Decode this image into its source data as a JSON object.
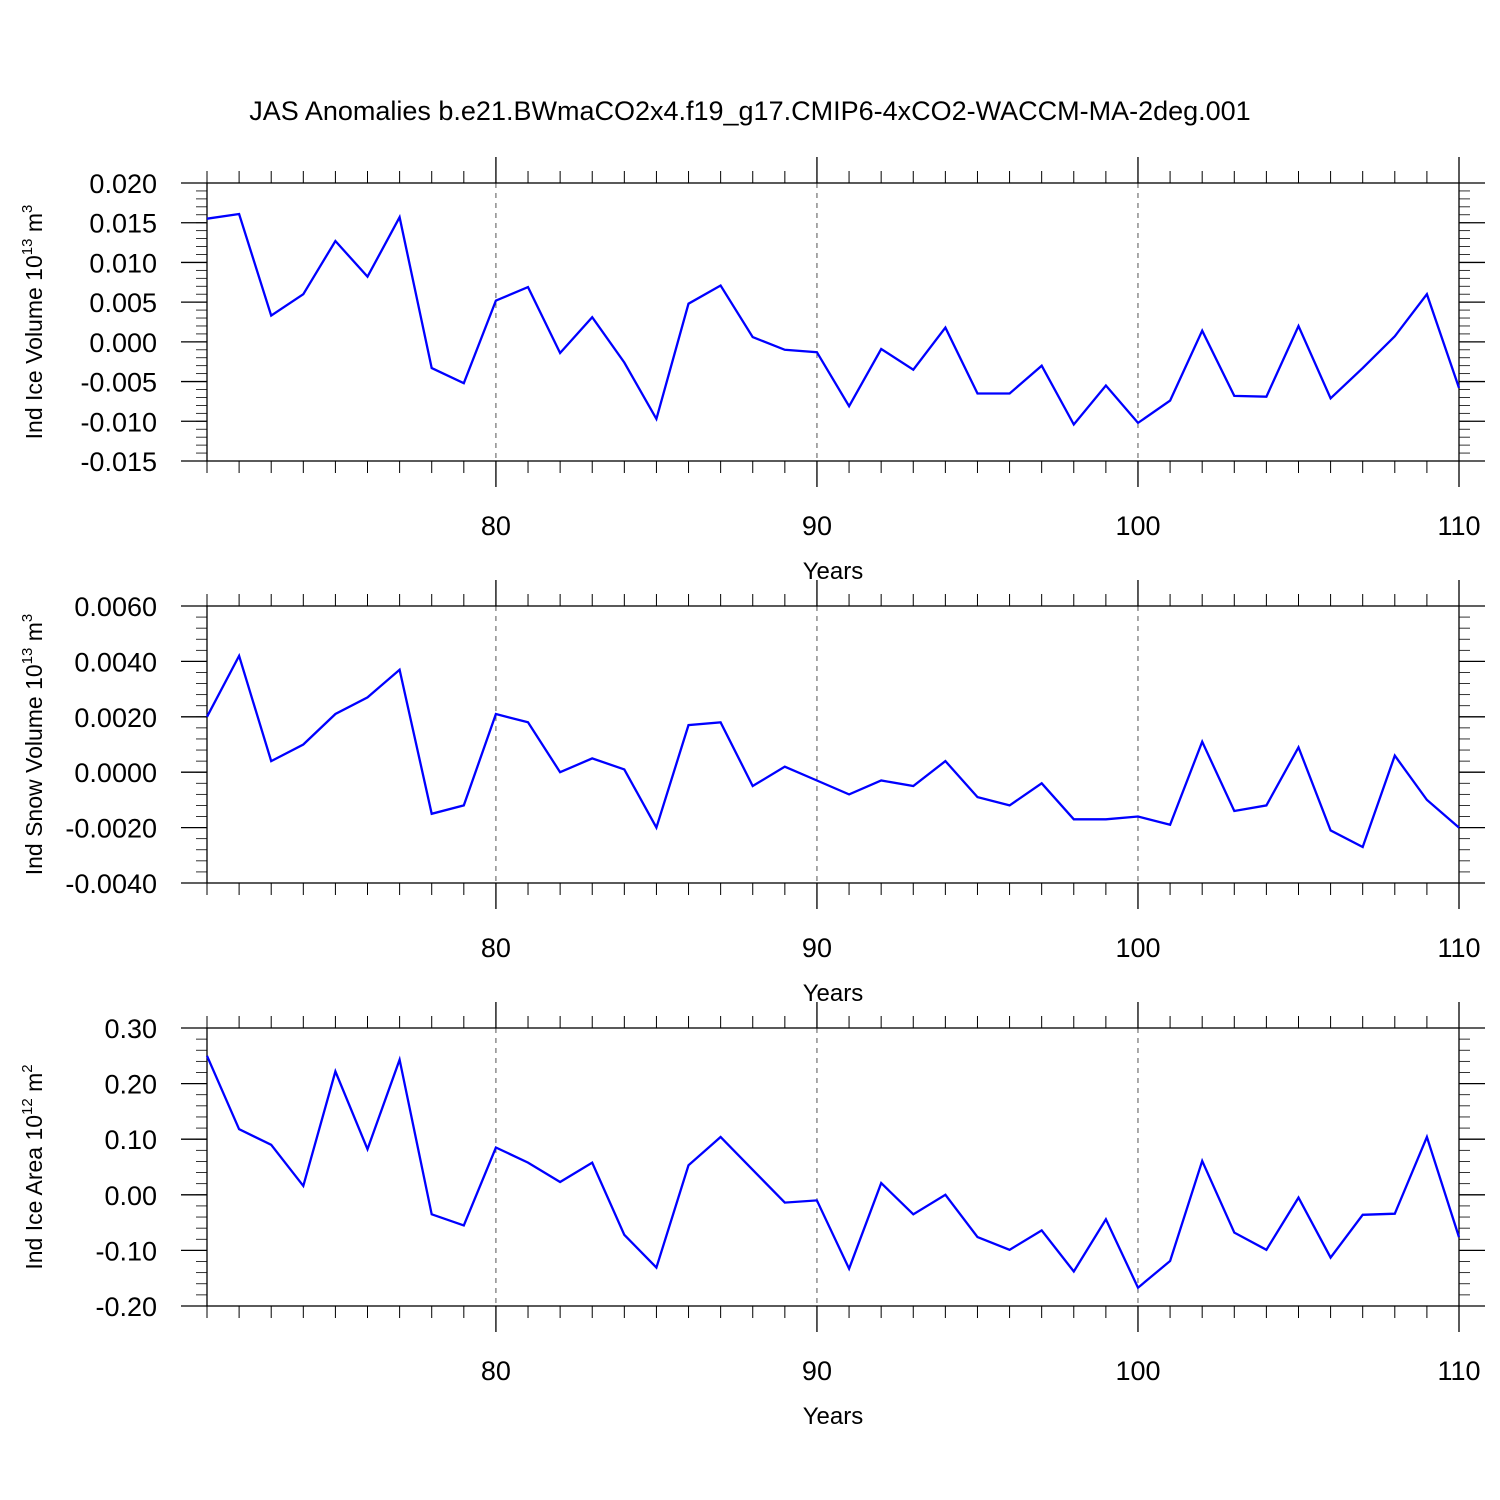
{
  "title": "JAS Anomalies b.e21.BWmaCO2x4.f19_g17.CMIP6-4xCO2-WACCM-MA-2deg.001",
  "colors": {
    "series": "#0000ff",
    "axis": "#000000",
    "grid": "#555555"
  },
  "chart_data": [
    {
      "type": "line",
      "ylabel": {
        "text": "Ind Ice Volume 10",
        "sup1": "13",
        "mid": " m",
        "sup2": "3"
      },
      "xlabel": "Years",
      "xlim": [
        71,
        110
      ],
      "ylim": [
        -0.015,
        0.02
      ],
      "x_ticks": [
        80,
        90,
        100,
        110
      ],
      "x_tick_labels": [
        "80",
        "90",
        "100",
        "110"
      ],
      "x_grid": "dashed at major ticks",
      "y_ticks": [
        -0.015,
        -0.01,
        -0.005,
        0.0,
        0.005,
        0.01,
        0.015,
        0.02
      ],
      "y_tick_labels": [
        "-0.015",
        "-0.010",
        "-0.005",
        "0.000",
        "0.005",
        "0.010",
        "0.015",
        "0.020"
      ],
      "y_minor_step": 0.001,
      "x": [
        71,
        72,
        73,
        74,
        75,
        76,
        77,
        78,
        79,
        80,
        81,
        82,
        83,
        84,
        85,
        86,
        87,
        88,
        89,
        90,
        91,
        92,
        93,
        94,
        95,
        96,
        97,
        98,
        99,
        100,
        101,
        102,
        103,
        104,
        105,
        106,
        107,
        108,
        109,
        110
      ],
      "series": [
        {
          "values": [
            0.0155,
            0.0161,
            0.0033,
            0.006,
            0.0127,
            0.0082,
            0.0157,
            -0.0033,
            -0.0052,
            0.0052,
            0.0069,
            -0.0014,
            0.0031,
            -0.0026,
            -0.0097,
            0.0048,
            0.0071,
            0.0006,
            -0.001,
            -0.0013,
            -0.0081,
            -0.0009,
            -0.0035,
            0.0018,
            -0.0065,
            -0.0065,
            -0.003,
            -0.0104,
            -0.0055,
            -0.0102,
            -0.0074,
            0.0014,
            -0.0068,
            -0.0069,
            0.002,
            -0.0071,
            -0.0033,
            0.0007,
            0.006,
            -0.0058
          ]
        }
      ]
    },
    {
      "type": "line",
      "ylabel": {
        "text": "Ind Snow Volume 10",
        "sup1": "13",
        "mid": " m",
        "sup2": "3"
      },
      "xlabel": "Years",
      "xlim": [
        71,
        110
      ],
      "ylim": [
        -0.004,
        0.006
      ],
      "x_ticks": [
        80,
        90,
        100,
        110
      ],
      "x_tick_labels": [
        "80",
        "90",
        "100",
        "110"
      ],
      "x_grid": "dashed at major ticks",
      "y_ticks": [
        -0.004,
        -0.002,
        0.0,
        0.002,
        0.004,
        0.006
      ],
      "y_tick_labels": [
        "-0.0040",
        "-0.0020",
        "0.0000",
        "0.0020",
        "0.0040",
        "0.0060"
      ],
      "y_minor_step": 0.0004,
      "x": [
        71,
        72,
        73,
        74,
        75,
        76,
        77,
        78,
        79,
        80,
        81,
        82,
        83,
        84,
        85,
        86,
        87,
        88,
        89,
        90,
        91,
        92,
        93,
        94,
        95,
        96,
        97,
        98,
        99,
        100,
        101,
        102,
        103,
        104,
        105,
        106,
        107,
        108,
        109,
        110
      ],
      "series": [
        {
          "values": [
            0.002,
            0.0042,
            0.0004,
            0.001,
            0.0021,
            0.0027,
            0.0037,
            -0.0015,
            -0.0012,
            0.0021,
            0.0018,
            0.0,
            0.0005,
            0.0001,
            -0.002,
            0.0017,
            0.0018,
            -0.0005,
            0.0002,
            -0.0003,
            -0.0008,
            -0.0003,
            -0.0005,
            0.0004,
            -0.0009,
            -0.0012,
            -0.0004,
            -0.0017,
            -0.0017,
            -0.0016,
            -0.0019,
            0.0011,
            -0.0014,
            -0.0012,
            0.0009,
            -0.0021,
            -0.0027,
            0.0006,
            -0.001,
            -0.002
          ]
        }
      ]
    },
    {
      "type": "line",
      "ylabel": {
        "text": "Ind Ice Area 10",
        "sup1": "12",
        "mid": " m",
        "sup2": "2"
      },
      "xlabel": "Years",
      "xlim": [
        71,
        110
      ],
      "ylim": [
        -0.2,
        0.3
      ],
      "x_ticks": [
        80,
        90,
        100,
        110
      ],
      "x_tick_labels": [
        "80",
        "90",
        "100",
        "110"
      ],
      "x_grid": "dashed at major ticks",
      "y_ticks": [
        -0.2,
        -0.1,
        0.0,
        0.1,
        0.2,
        0.3
      ],
      "y_tick_labels": [
        "-0.20",
        "-0.10",
        "0.00",
        "0.10",
        "0.20",
        "0.30"
      ],
      "y_minor_step": 0.02,
      "x": [
        71,
        72,
        73,
        74,
        75,
        76,
        77,
        78,
        79,
        80,
        81,
        82,
        83,
        84,
        85,
        86,
        87,
        88,
        89,
        90,
        91,
        92,
        93,
        94,
        95,
        96,
        97,
        98,
        99,
        100,
        101,
        102,
        103,
        104,
        105,
        106,
        107,
        108,
        109,
        110
      ],
      "series": [
        {
          "values": [
            0.25,
            0.118,
            0.09,
            0.016,
            0.222,
            0.082,
            0.243,
            -0.035,
            -0.055,
            0.085,
            0.058,
            0.023,
            0.058,
            -0.072,
            -0.131,
            0.053,
            0.104,
            0.045,
            -0.014,
            -0.01,
            -0.133,
            0.021,
            -0.035,
            0.0,
            -0.076,
            -0.099,
            -0.064,
            -0.138,
            -0.044,
            -0.167,
            -0.119,
            0.061,
            -0.068,
            -0.099,
            -0.005,
            -0.113,
            -0.036,
            -0.034,
            0.104,
            -0.076
          ]
        }
      ]
    }
  ]
}
